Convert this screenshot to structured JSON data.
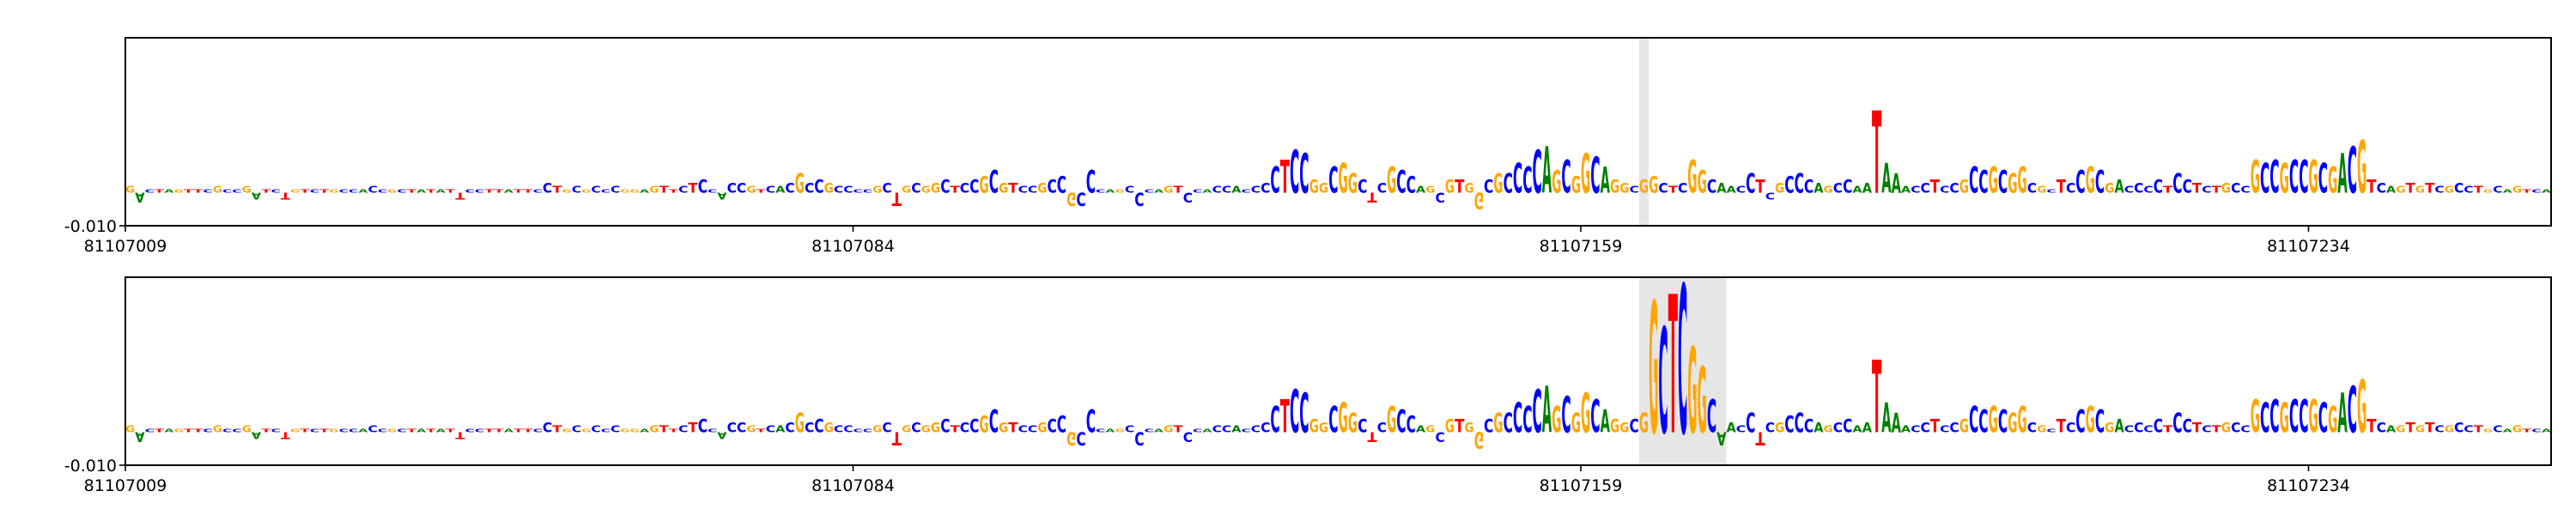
{
  "chart_data": [
    {
      "type": "sequence_logo",
      "sequence": "GACTAGTTCGCCGATCTGTCTGCCACCGCTATATTCCTTATTCCTGCGCCCGGAGTTCTCCACCGTCACGCCGCCCCGCTGCGGCTCCGCGTCCGCCGCCCAGCCCAGTCCACCACCCCTCCGGCGGCTCGCCAGCGTGGCGCCCCAGCGGCAGGCGGCTCGGCAACCTCGCCCAGCCAATAAACCTCCGCCGCGGCGCTCCGCGACCCCTCCTCTGCCGCCGCCGCGACGTCAGTGTCGCCTGCAGTCA",
      "x": [
        81107009,
        81107010,
        81107011,
        81107012,
        81107013,
        81107014,
        81107015,
        81107016,
        81107017,
        81107018,
        81107019,
        81107020,
        81107021,
        81107022,
        81107023,
        81107024,
        81107025,
        81107026,
        81107027,
        81107028,
        81107029,
        81107030,
        81107031,
        81107032,
        81107033,
        81107034,
        81107035,
        81107036,
        81107037,
        81107038,
        81107039,
        81107040,
        81107041,
        81107042,
        81107043,
        81107044,
        81107045,
        81107046,
        81107047,
        81107048,
        81107049,
        81107050,
        81107051,
        81107052,
        81107053,
        81107054,
        81107055,
        81107056,
        81107057,
        81107058,
        81107059,
        81107060,
        81107061,
        81107062,
        81107063,
        81107064,
        81107065,
        81107066,
        81107067,
        81107068,
        81107069,
        81107070,
        81107071,
        81107072,
        81107073,
        81107074,
        81107075,
        81107076,
        81107077,
        81107078,
        81107079,
        81107080,
        81107081,
        81107082,
        81107083,
        81107084,
        81107085,
        81107086,
        81107087,
        81107088,
        81107089,
        81107090,
        81107091,
        81107092,
        81107093,
        81107094,
        81107095,
        81107096,
        81107097,
        81107098,
        81107099,
        81107100,
        81107101,
        81107102,
        81107103,
        81107104,
        81107105,
        81107106,
        81107107,
        81107108,
        81107109,
        81107110,
        81107111,
        81107112,
        81107113,
        81107114,
        81107115,
        81107116,
        81107117,
        81107118,
        81107119,
        81107120,
        81107121,
        81107122,
        81107123,
        81107124,
        81107125,
        81107126,
        81107127,
        81107128,
        81107129,
        81107130,
        81107131,
        81107132,
        81107133,
        81107134,
        81107135,
        81107136,
        81107137,
        81107138,
        81107139,
        81107140,
        81107141,
        81107142,
        81107143,
        81107144,
        81107145,
        81107146,
        81107147,
        81107148,
        81107149,
        81107150,
        81107151,
        81107152,
        81107153,
        81107154,
        81107155,
        81107156,
        81107157,
        81107158,
        81107159,
        81107160,
        81107161,
        81107162,
        81107163,
        81107164,
        81107165,
        81107166,
        81107167,
        81107168,
        81107169,
        81107170,
        81107171,
        81107172,
        81107173,
        81107174,
        81107175,
        81107176,
        81107177,
        81107178,
        81107179,
        81107180,
        81107181,
        81107182,
        81107183,
        81107184,
        81107185,
        81107186,
        81107187,
        81107188,
        81107189,
        81107190,
        81107191,
        81107192,
        81107193,
        81107194,
        81107195,
        81107196,
        81107197,
        81107198,
        81107199,
        81107200,
        81107201,
        81107202,
        81107203,
        81107204,
        81107205,
        81107206,
        81107207,
        81107208,
        81107209,
        81107210,
        81107211,
        81107212,
        81107213,
        81107214,
        81107215,
        81107216,
        81107217,
        81107218,
        81107219,
        81107220,
        81107221,
        81107222,
        81107223,
        81107224,
        81107225,
        81107226,
        81107227,
        81107228,
        81107229,
        81107230,
        81107231,
        81107232,
        81107233,
        81107234,
        81107235,
        81107236,
        81107237,
        81107238,
        81107239,
        81107240,
        81107241,
        81107242,
        81107243,
        81107244,
        81107245,
        81107246,
        81107247,
        81107248,
        81107249,
        81107250,
        81107251,
        81107252,
        81107253,
        81107254,
        81107255,
        81107256,
        81107257,
        81107258
      ],
      "values": [
        0.002,
        -0.003,
        0.001,
        0.001,
        0.001,
        0.001,
        0.001,
        0.001,
        0.001,
        0.002,
        0.001,
        0.001,
        0.002,
        -0.002,
        0.001,
        0.001,
        -0.002,
        0.001,
        0.001,
        0.001,
        0.001,
        0.001,
        0.001,
        0.001,
        0.001,
        0.002,
        0.001,
        0.001,
        0.001,
        0.001,
        0.001,
        0.001,
        0.001,
        0.001,
        -0.002,
        0.001,
        0.001,
        0.001,
        0.001,
        0.001,
        0.001,
        0.001,
        0.001,
        0.003,
        0.002,
        0.001,
        0.002,
        0.001,
        0.002,
        0.001,
        0.002,
        0.001,
        0.001,
        0.001,
        0.002,
        0.002,
        0.001,
        0.002,
        0.003,
        0.004,
        0.001,
        -0.002,
        0.003,
        0.003,
        0.002,
        0.001,
        0.002,
        0.002,
        0.003,
        0.006,
        0.003,
        0.004,
        0.003,
        0.002,
        0.002,
        0.001,
        0.001,
        0.002,
        0.003,
        -0.004,
        0.002,
        0.003,
        0.002,
        0.003,
        0.004,
        0.002,
        0.003,
        0.004,
        0.005,
        0.007,
        0.003,
        0.003,
        0.002,
        0.002,
        0.003,
        0.004,
        0.005,
        -0.004,
        -0.004,
        0.007,
        0.001,
        0.001,
        0.001,
        0.002,
        -0.004,
        0.001,
        0.001,
        0.002,
        0.002,
        -0.003,
        0.001,
        0.001,
        0.002,
        0.002,
        0.002,
        0.001,
        0.002,
        0.003,
        0.008,
        0.01,
        0.013,
        0.012,
        0.004,
        0.003,
        0.008,
        0.009,
        0.006,
        0.004,
        -0.003,
        0.003,
        0.008,
        0.007,
        0.005,
        0.002,
        0.002,
        -0.003,
        0.004,
        0.004,
        0.003,
        -0.005,
        0.004,
        0.006,
        0.006,
        0.009,
        0.008,
        0.013,
        0.014,
        0.007,
        0.01,
        0.005,
        0.012,
        0.011,
        0.008,
        0.004,
        0.003,
        0.002,
        0.004,
        0.005,
        0.003,
        0.002,
        0.003,
        0.01,
        0.007,
        0.004,
        0.003,
        0.002,
        0.002,
        0.006,
        0.004,
        -0.002,
        0.003,
        0.005,
        0.006,
        0.004,
        0.003,
        0.002,
        0.003,
        0.004,
        0.002,
        0.003,
        0.025,
        0.009,
        0.006,
        0.002,
        0.002,
        0.003,
        0.004,
        0.002,
        0.003,
        0.004,
        0.008,
        0.007,
        0.008,
        0.007,
        0.006,
        0.008,
        0.003,
        0.002,
        0.001,
        0.004,
        0.003,
        0.007,
        0.008,
        0.007,
        0.003,
        0.004,
        0.002,
        0.003,
        0.002,
        0.004,
        0.002,
        0.006,
        0.004,
        0.003,
        0.002,
        0.002,
        0.003,
        0.003,
        0.002,
        0.01,
        0.009,
        0.01,
        0.009,
        0.01,
        0.01,
        0.01,
        0.009,
        0.008,
        0.012,
        0.014,
        0.016,
        0.004,
        0.003,
        0.002,
        0.002,
        0.003,
        0.002,
        0.003,
        0.002,
        0.002,
        0.003,
        0.002,
        0.002,
        0.001,
        0.002,
        0.001,
        0.002,
        0.001,
        0.001,
        0.001
      ],
      "colors": {
        "A": "#008000",
        "C": "#0000ff",
        "G": "#ffa500",
        "T": "#ff0000"
      },
      "highlight": [
        81107165,
        81107165
      ],
      "highlight_color": "#e6e6e6",
      "xlim": [
        81107009,
        81107259
      ],
      "xticks": [
        81107009,
        81107084,
        81107159,
        81107234
      ],
      "ylim": [
        -0.01,
        0.047
      ],
      "yticks": [
        {
          "value": -0.01,
          "label": "-0.010"
        }
      ]
    },
    {
      "type": "sequence_logo",
      "sequence": "GACTAGTTCGCCGATCTGTCTGCCACCGCTATATTCCTTATTCCTGCGCCCGGAGTTCTCCACCGTCACGCCGCCCCGCTGCGGCTCCGCGTCCGCCGCCCAGCCCAGTCCACCACCCCTCCGGCGGCTCGCCAGCGTGGCGCCCCAGCGGCAGGCGGCTCGGCAACCTCGCCCAGCCAATAAACCTCCGCCGCGGCGCTCCGCGACCCCTCCTCTGCCGCCGCCGCGACGTCAGTGTCGCCTGCAGTCA",
      "x": [
        81107009,
        81107010,
        81107011,
        81107012,
        81107013,
        81107014,
        81107015,
        81107016,
        81107017,
        81107018,
        81107019,
        81107020,
        81107021,
        81107022,
        81107023,
        81107024,
        81107025,
        81107026,
        81107027,
        81107028,
        81107029,
        81107030,
        81107031,
        81107032,
        81107033,
        81107034,
        81107035,
        81107036,
        81107037,
        81107038,
        81107039,
        81107040,
        81107041,
        81107042,
        81107043,
        81107044,
        81107045,
        81107046,
        81107047,
        81107048,
        81107049,
        81107050,
        81107051,
        81107052,
        81107053,
        81107054,
        81107055,
        81107056,
        81107057,
        81107058,
        81107059,
        81107060,
        81107061,
        81107062,
        81107063,
        81107064,
        81107065,
        81107066,
        81107067,
        81107068,
        81107069,
        81107070,
        81107071,
        81107072,
        81107073,
        81107074,
        81107075,
        81107076,
        81107077,
        81107078,
        81107079,
        81107080,
        81107081,
        81107082,
        81107083,
        81107084,
        81107085,
        81107086,
        81107087,
        81107088,
        81107089,
        81107090,
        81107091,
        81107092,
        81107093,
        81107094,
        81107095,
        81107096,
        81107097,
        81107098,
        81107099,
        81107100,
        81107101,
        81107102,
        81107103,
        81107104,
        81107105,
        81107106,
        81107107,
        81107108,
        81107109,
        81107110,
        81107111,
        81107112,
        81107113,
        81107114,
        81107115,
        81107116,
        81107117,
        81107118,
        81107119,
        81107120,
        81107121,
        81107122,
        81107123,
        81107124,
        81107125,
        81107126,
        81107127,
        81107128,
        81107129,
        81107130,
        81107131,
        81107132,
        81107133,
        81107134,
        81107135,
        81107136,
        81107137,
        81107138,
        81107139,
        81107140,
        81107141,
        81107142,
        81107143,
        81107144,
        81107145,
        81107146,
        81107147,
        81107148,
        81107149,
        81107150,
        81107151,
        81107152,
        81107153,
        81107154,
        81107155,
        81107156,
        81107157,
        81107158,
        81107159,
        81107160,
        81107161,
        81107162,
        81107163,
        81107164,
        81107165,
        81107166,
        81107167,
        81107168,
        81107169,
        81107170,
        81107171,
        81107172,
        81107173,
        81107174,
        81107175,
        81107176,
        81107177,
        81107178,
        81107179,
        81107180,
        81107181,
        81107182,
        81107183,
        81107184,
        81107185,
        81107186,
        81107187,
        81107188,
        81107189,
        81107190,
        81107191,
        81107192,
        81107193,
        81107194,
        81107195,
        81107196,
        81107197,
        81107198,
        81107199,
        81107200,
        81107201,
        81107202,
        81107203,
        81107204,
        81107205,
        81107206,
        81107207,
        81107208,
        81107209,
        81107210,
        81107211,
        81107212,
        81107213,
        81107214,
        81107215,
        81107216,
        81107217,
        81107218,
        81107219,
        81107220,
        81107221,
        81107222,
        81107223,
        81107224,
        81107225,
        81107226,
        81107227,
        81107228,
        81107229,
        81107230,
        81107231,
        81107232,
        81107233,
        81107234,
        81107235,
        81107236,
        81107237,
        81107238,
        81107239,
        81107240,
        81107241,
        81107242,
        81107243,
        81107244,
        81107245,
        81107246,
        81107247,
        81107248,
        81107249,
        81107250,
        81107251,
        81107252,
        81107253,
        81107254,
        81107255,
        81107256,
        81107257,
        81107258
      ],
      "values": [
        0.002,
        -0.003,
        0.001,
        0.001,
        0.001,
        0.001,
        0.001,
        0.001,
        0.001,
        0.002,
        0.001,
        0.001,
        0.002,
        -0.002,
        0.001,
        0.001,
        -0.002,
        0.001,
        0.001,
        0.001,
        0.001,
        0.001,
        0.001,
        0.001,
        0.001,
        0.002,
        0.001,
        0.001,
        0.001,
        0.001,
        0.001,
        0.001,
        0.001,
        0.001,
        -0.002,
        0.001,
        0.001,
        0.001,
        0.001,
        0.001,
        0.001,
        0.001,
        0.001,
        0.003,
        0.002,
        0.001,
        0.002,
        0.001,
        0.002,
        0.001,
        0.002,
        0.001,
        0.001,
        0.001,
        0.002,
        0.002,
        0.001,
        0.002,
        0.003,
        0.004,
        0.001,
        -0.002,
        0.003,
        0.003,
        0.002,
        0.001,
        0.002,
        0.002,
        0.003,
        0.006,
        0.003,
        0.004,
        0.003,
        0.002,
        0.002,
        0.001,
        0.001,
        0.002,
        0.003,
        -0.004,
        0.002,
        0.003,
        0.002,
        0.003,
        0.004,
        0.002,
        0.003,
        0.004,
        0.005,
        0.007,
        0.003,
        0.003,
        0.002,
        0.002,
        0.003,
        0.004,
        0.005,
        -0.004,
        -0.004,
        0.007,
        0.001,
        0.001,
        0.001,
        0.002,
        -0.004,
        0.001,
        0.001,
        0.002,
        0.002,
        -0.003,
        0.001,
        0.001,
        0.002,
        0.002,
        0.002,
        0.001,
        0.002,
        0.003,
        0.008,
        0.01,
        0.013,
        0.012,
        0.004,
        0.003,
        0.008,
        0.009,
        0.006,
        0.004,
        -0.003,
        0.003,
        0.008,
        0.007,
        0.005,
        0.002,
        0.002,
        -0.003,
        0.004,
        0.004,
        0.003,
        -0.005,
        0.004,
        0.006,
        0.006,
        0.009,
        0.008,
        0.013,
        0.014,
        0.008,
        0.011,
        0.006,
        0.012,
        0.01,
        0.007,
        0.004,
        0.003,
        0.004,
        0.006,
        0.04,
        0.032,
        0.042,
        0.045,
        0.026,
        0.02,
        0.01,
        -0.004,
        0.003,
        0.002,
        0.006,
        -0.004,
        0.003,
        0.003,
        0.005,
        0.006,
        0.004,
        0.003,
        0.002,
        0.003,
        0.004,
        0.002,
        0.003,
        0.022,
        0.009,
        0.006,
        0.002,
        0.002,
        0.003,
        0.004,
        0.002,
        0.003,
        0.004,
        0.008,
        0.007,
        0.008,
        0.007,
        0.006,
        0.008,
        0.003,
        0.002,
        0.001,
        0.004,
        0.003,
        0.007,
        0.008,
        0.007,
        0.003,
        0.004,
        0.002,
        0.003,
        0.002,
        0.004,
        0.002,
        0.006,
        0.004,
        0.003,
        0.002,
        0.002,
        0.003,
        0.003,
        0.002,
        0.01,
        0.009,
        0.01,
        0.009,
        0.01,
        0.01,
        0.01,
        0.009,
        0.008,
        0.012,
        0.014,
        0.016,
        0.004,
        0.003,
        0.002,
        0.002,
        0.003,
        0.002,
        0.003,
        0.002,
        0.002,
        0.003,
        0.002,
        0.002,
        0.001,
        0.002,
        0.001,
        0.002,
        0.001,
        0.001,
        0.001
      ],
      "colors": {
        "A": "#008000",
        "C": "#0000ff",
        "G": "#ffa500",
        "T": "#ff0000"
      },
      "highlight": [
        81107165,
        81107173
      ],
      "highlight_color": "#e6e6e6",
      "xlim": [
        81107009,
        81107259
      ],
      "xticks": [
        81107009,
        81107084,
        81107159,
        81107234
      ],
      "ylim": [
        -0.01,
        0.047
      ],
      "yticks": [
        {
          "value": -0.01,
          "label": "-0.010"
        }
      ]
    }
  ]
}
